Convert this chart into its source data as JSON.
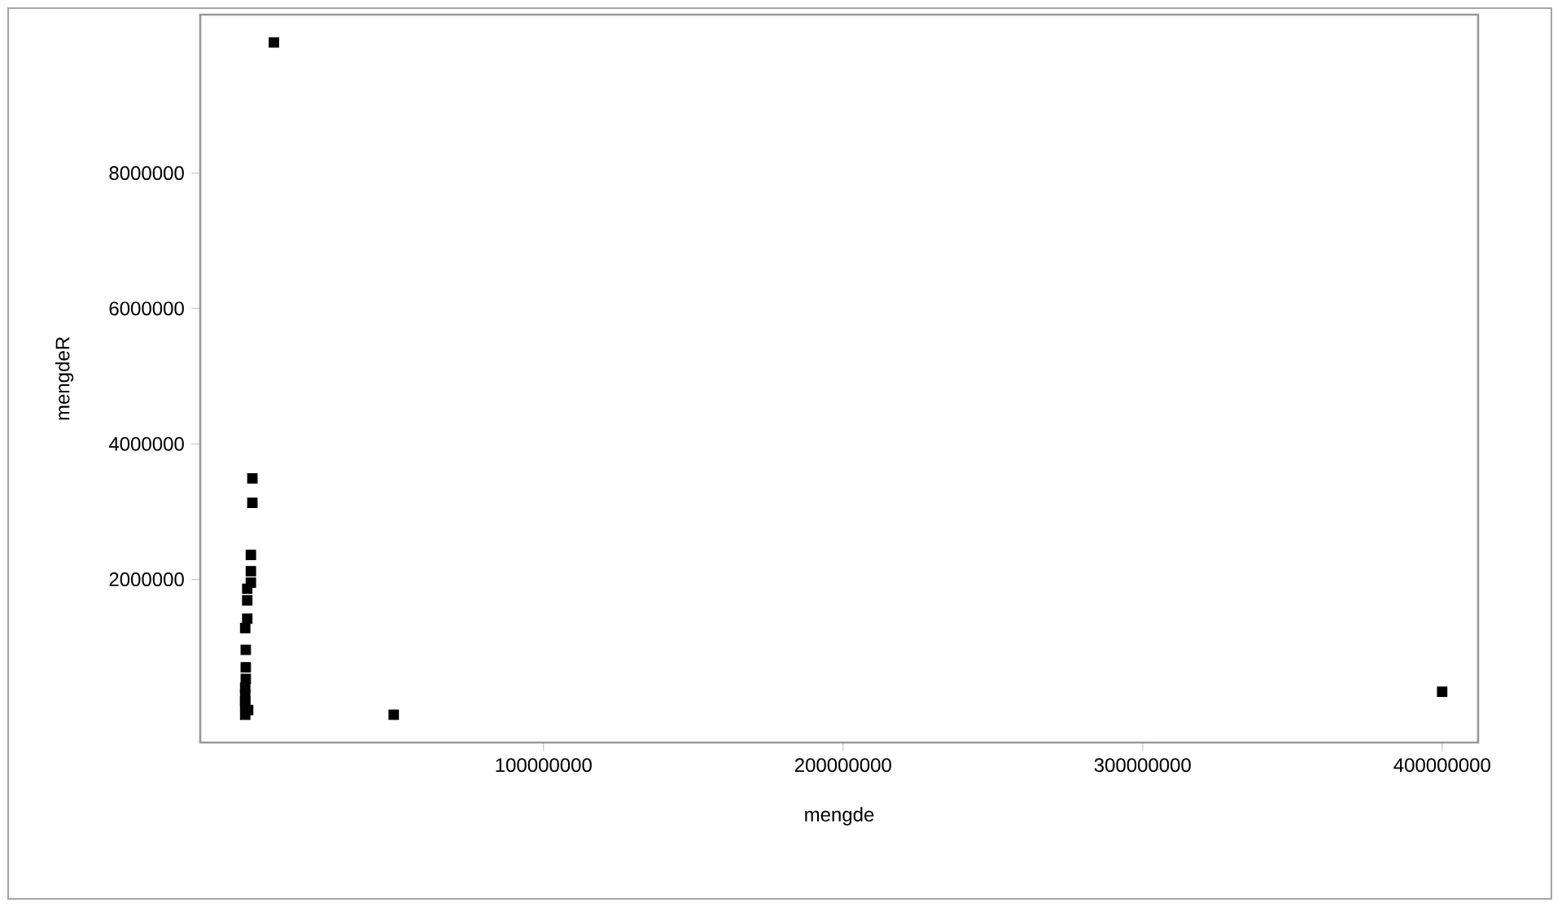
{
  "chart_data": {
    "type": "scatter",
    "xlabel": "mengde",
    "ylabel": "mengdeR",
    "marker": "square",
    "xlim": [
      -14600000,
      412000000
    ],
    "ylim": [
      -410000,
      10340000
    ],
    "xticks": [
      100000000,
      200000000,
      300000000,
      400000000
    ],
    "yticks": [
      2000000,
      4000000,
      6000000,
      8000000
    ],
    "series": [
      {
        "color": "#000000",
        "x": [
          10000000,
          2800000,
          2800000,
          2300000,
          2300000,
          2300000,
          1100000,
          1100000,
          1100000,
          400000,
          600000,
          600000,
          600000,
          400000,
          400000,
          400000,
          400000,
          1400000,
          400000,
          50000000,
          400000000
        ],
        "values": [
          9930000,
          3490000,
          3130000,
          2360000,
          2120000,
          1950000,
          1860000,
          1690000,
          1420000,
          1280000,
          960000,
          700000,
          530000,
          400000,
          300000,
          200000,
          140000,
          70000,
          0,
          0,
          340000
        ]
      }
    ]
  }
}
